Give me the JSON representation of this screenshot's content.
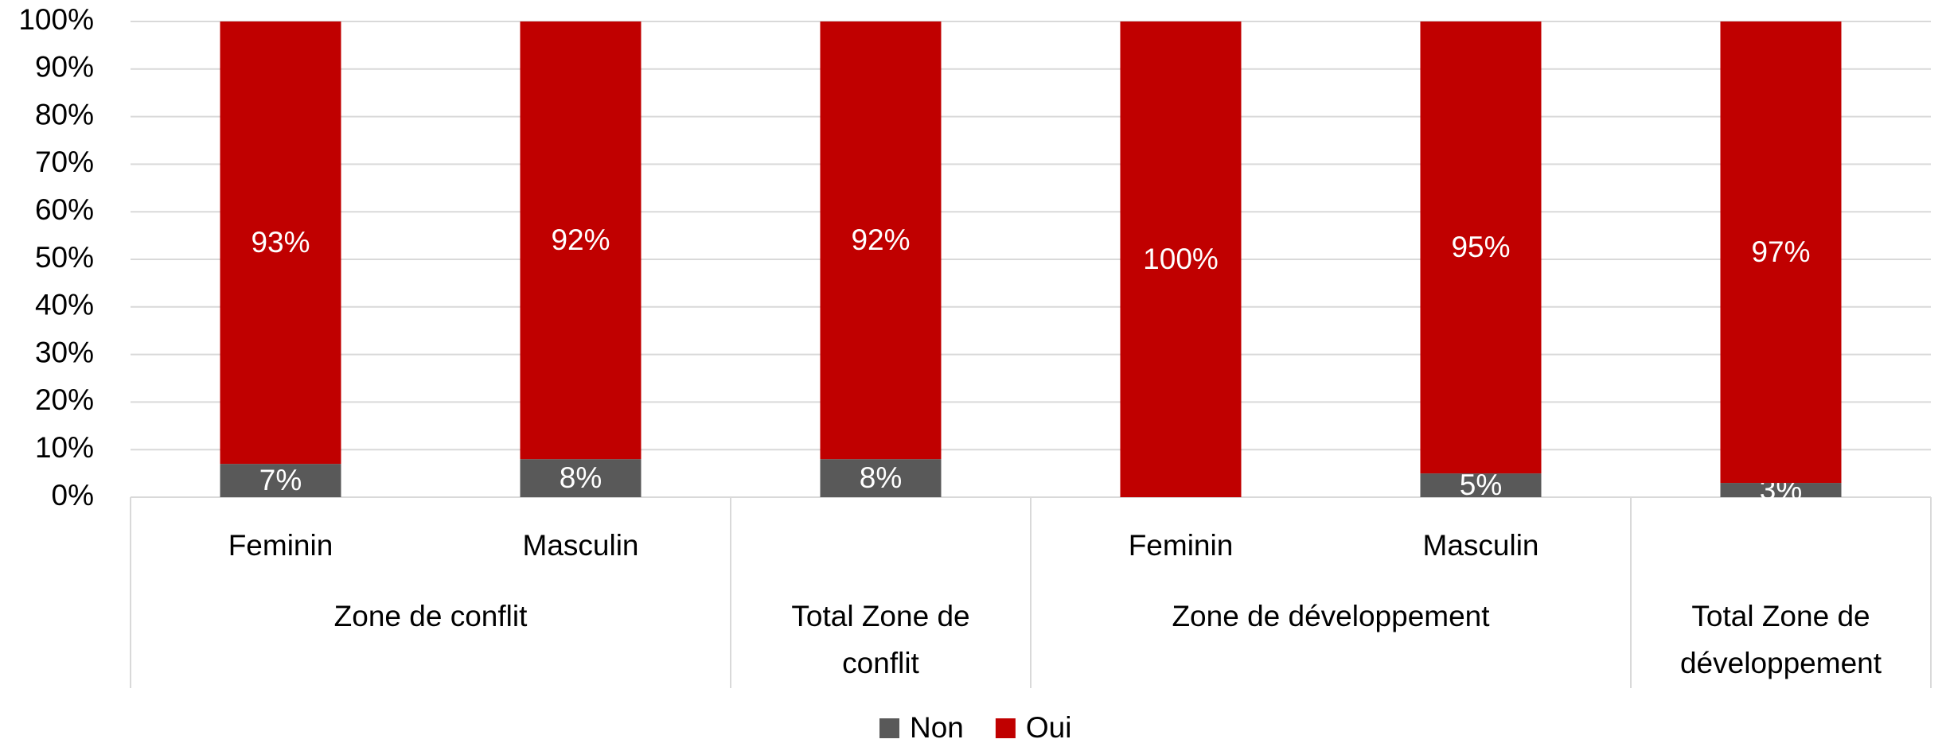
{
  "chart_data": {
    "type": "stacked_bar",
    "groups": [
      {
        "label": "Zone de conflit",
        "categories": [
          "Feminin",
          "Masculin"
        ]
      },
      {
        "label": "Total Zone de conflit",
        "categories": [
          null
        ]
      },
      {
        "label": "Zone de développement",
        "categories": [
          "Feminin",
          "Masculin"
        ]
      },
      {
        "label": "Total Zone de développement",
        "categories": [
          null
        ]
      }
    ],
    "series": [
      {
        "name": "Non",
        "color": "#595959",
        "values": [
          7,
          8,
          8,
          0,
          5,
          3
        ],
        "value_labels": [
          "7%",
          "8%",
          "8%",
          null,
          "5%",
          "3%"
        ]
      },
      {
        "name": "Oui",
        "color": "#c00000",
        "values": [
          93,
          92,
          92,
          100,
          95,
          97
        ],
        "value_labels": [
          "93%",
          "92%",
          "92%",
          "100%",
          "95%",
          "97%"
        ]
      }
    ],
    "ylim": [
      0,
      100
    ],
    "yticks": [
      {
        "value": 0,
        "label": "0%"
      },
      {
        "value": 10,
        "label": "10%"
      },
      {
        "value": 20,
        "label": "20%"
      },
      {
        "value": 30,
        "label": "30%"
      },
      {
        "value": 40,
        "label": "40%"
      },
      {
        "value": 50,
        "label": "50%"
      },
      {
        "value": 60,
        "label": "60%"
      },
      {
        "value": 70,
        "label": "70%"
      },
      {
        "value": 80,
        "label": "80%"
      },
      {
        "value": 90,
        "label": "90%"
      },
      {
        "value": 100,
        "label": "100%"
      }
    ],
    "grid": true,
    "legend": "bottom"
  }
}
